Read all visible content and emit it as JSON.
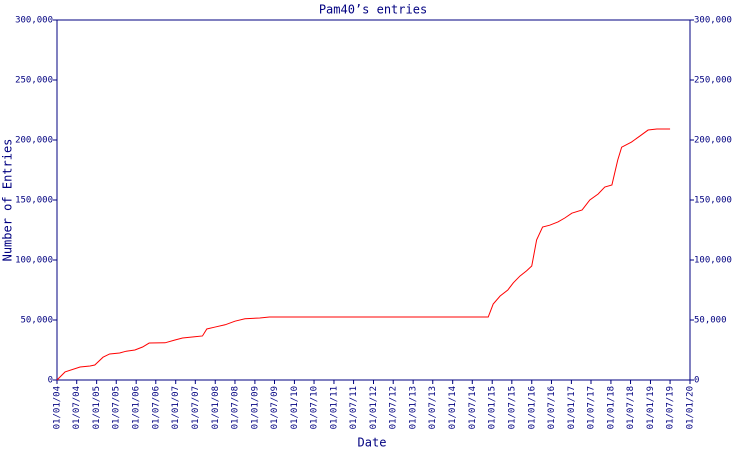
{
  "chart_data": {
    "type": "line",
    "title": "Pam40’s entries",
    "x_label": "Date",
    "y_label": "Number of Entries",
    "x": [
      "2004-01-01",
      "2004-03-15",
      "2004-08-01",
      "2004-11-01",
      "2004-12-15",
      "2005-03-01",
      "2005-05-01",
      "2005-08-01",
      "2005-10-01",
      "2005-12-20",
      "2006-03-01",
      "2006-05-01",
      "2006-09-25",
      "2006-12-25",
      "2007-03-05",
      "2007-06-25",
      "2007-09-05",
      "2007-10-15",
      "2007-12-25",
      "2008-04-01",
      "2008-07-01",
      "2008-10-01",
      "2009-02-15",
      "2009-05-15",
      "2014-11-25",
      "2015-01-10",
      "2015-03-15",
      "2015-05-25",
      "2015-07-15",
      "2015-09-15",
      "2015-11-15",
      "2016-01-01",
      "2016-02-15",
      "2016-04-10",
      "2016-06-15",
      "2016-08-30",
      "2016-11-01",
      "2017-01-05",
      "2017-04-10",
      "2017-06-20",
      "2017-09-05",
      "2017-11-05",
      "2018-01-10",
      "2018-03-05",
      "2018-04-10",
      "2018-07-10",
      "2018-09-25",
      "2018-12-10",
      "2019-03-01",
      "2019-07-01"
    ],
    "series": [
      {
        "name": "Pam40",
        "color": "#ff0000",
        "values": [
          0,
          6700,
          10800,
          11700,
          12500,
          19000,
          21700,
          22500,
          24000,
          25000,
          27500,
          30800,
          31000,
          33300,
          35000,
          36000,
          36700,
          42500,
          44000,
          46000,
          49000,
          51000,
          51700,
          52500,
          52500,
          63300,
          70000,
          75000,
          81000,
          86700,
          91000,
          95000,
          116700,
          127500,
          129000,
          131700,
          135000,
          139000,
          141700,
          150000,
          155000,
          160800,
          162500,
          183300,
          194000,
          198300,
          203300,
          208300,
          209200,
          209200
        ]
      }
    ],
    "xlim": [
      "2004-01-01",
      "2020-01-01"
    ],
    "xticks": [
      {
        "value": "2004-01-01",
        "label": "01/01/04"
      },
      {
        "value": "2004-07-01",
        "label": "01/07/04"
      },
      {
        "value": "2005-01-01",
        "label": "01/01/05"
      },
      {
        "value": "2005-07-01",
        "label": "01/07/05"
      },
      {
        "value": "2006-01-01",
        "label": "01/01/06"
      },
      {
        "value": "2006-07-01",
        "label": "01/07/06"
      },
      {
        "value": "2007-01-01",
        "label": "01/01/07"
      },
      {
        "value": "2007-07-01",
        "label": "01/07/07"
      },
      {
        "value": "2008-01-01",
        "label": "01/01/08"
      },
      {
        "value": "2008-07-01",
        "label": "01/07/08"
      },
      {
        "value": "2009-01-01",
        "label": "01/01/09"
      },
      {
        "value": "2009-07-01",
        "label": "01/07/09"
      },
      {
        "value": "2010-01-01",
        "label": "01/01/10"
      },
      {
        "value": "2010-07-01",
        "label": "01/07/10"
      },
      {
        "value": "2011-01-01",
        "label": "01/01/11"
      },
      {
        "value": "2011-07-01",
        "label": "01/07/11"
      },
      {
        "value": "2012-01-01",
        "label": "01/01/12"
      },
      {
        "value": "2012-07-01",
        "label": "01/07/12"
      },
      {
        "value": "2013-01-01",
        "label": "01/01/13"
      },
      {
        "value": "2013-07-01",
        "label": "01/07/13"
      },
      {
        "value": "2014-01-01",
        "label": "01/01/14"
      },
      {
        "value": "2014-07-01",
        "label": "01/07/14"
      },
      {
        "value": "2015-01-01",
        "label": "01/01/15"
      },
      {
        "value": "2015-07-01",
        "label": "01/07/15"
      },
      {
        "value": "2016-01-01",
        "label": "01/01/16"
      },
      {
        "value": "2016-07-01",
        "label": "01/07/16"
      },
      {
        "value": "2017-01-01",
        "label": "01/01/17"
      },
      {
        "value": "2017-07-01",
        "label": "01/07/17"
      },
      {
        "value": "2018-01-01",
        "label": "01/01/18"
      },
      {
        "value": "2018-07-01",
        "label": "01/07/18"
      },
      {
        "value": "2019-01-01",
        "label": "01/01/19"
      },
      {
        "value": "2019-07-01",
        "label": "01/07/19"
      },
      {
        "value": "2020-01-01",
        "label": "01/01/20"
      }
    ],
    "ylim": [
      0,
      300000
    ],
    "yticks": [
      0,
      {
        "value": 50000,
        "label": "50,000"
      },
      {
        "value": 100000,
        "label": "100,000"
      },
      {
        "value": 150000,
        "label": "150,000"
      },
      {
        "value": 200000,
        "label": "200,000"
      },
      {
        "value": 250000,
        "label": "250,000"
      },
      {
        "value": 300000,
        "label": "300,000"
      }
    ],
    "y2lim": [
      0,
      300000
    ],
    "y2ticks": [
      0,
      {
        "value": 50000,
        "label": "50,000"
      },
      {
        "value": 100000,
        "label": "100,000"
      },
      {
        "value": 150000,
        "label": "150,000"
      },
      {
        "value": 200000,
        "label": "200,000"
      },
      {
        "value": 250000,
        "label": "250,000"
      },
      {
        "value": 300000,
        "label": "300,000"
      }
    ],
    "axis_color": "#000080"
  }
}
